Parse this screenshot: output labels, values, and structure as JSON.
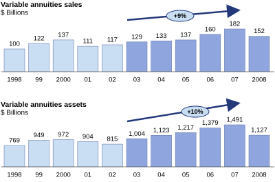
{
  "chart_data": [
    {
      "type": "bar",
      "title": "Variable annuities sales",
      "subtitle": "$ Billions",
      "categories": [
        "1998",
        "99",
        "2000",
        "01",
        "02",
        "03",
        "04",
        "05",
        "06",
        "07",
        "2008"
      ],
      "values": [
        100,
        122,
        137,
        111,
        117,
        129,
        133,
        137,
        160,
        182,
        152
      ],
      "colors": [
        "#c9def2",
        "#c9def2",
        "#c9def2",
        "#c9def2",
        "#c9def2",
        "#8fa5dd",
        "#8fa5dd",
        "#8fa5dd",
        "#8fa5dd",
        "#8fa5dd",
        "#8fa5dd"
      ],
      "annotation": "+9%"
    },
    {
      "type": "bar",
      "title": "Variable annuities assets",
      "subtitle": "$ Billions",
      "categories": [
        "1998",
        "99",
        "2000",
        "01",
        "02",
        "03",
        "04",
        "05",
        "06",
        "07",
        "2008"
      ],
      "values": [
        769,
        949,
        972,
        904,
        815,
        1004,
        1123,
        1217,
        1379,
        1491,
        1127
      ],
      "value_labels": [
        "769",
        "949",
        "972",
        "904",
        "815",
        "1,004",
        "1,123",
        "1,217",
        "1,379",
        "1,491",
        "1,127"
      ],
      "colors": [
        "#c9def2",
        "#c9def2",
        "#c9def2",
        "#c9def2",
        "#c9def2",
        "#8fa5dd",
        "#8fa5dd",
        "#8fa5dd",
        "#8fa5dd",
        "#8fa5dd",
        "#8fa5dd"
      ],
      "annotation": "+10%"
    }
  ]
}
